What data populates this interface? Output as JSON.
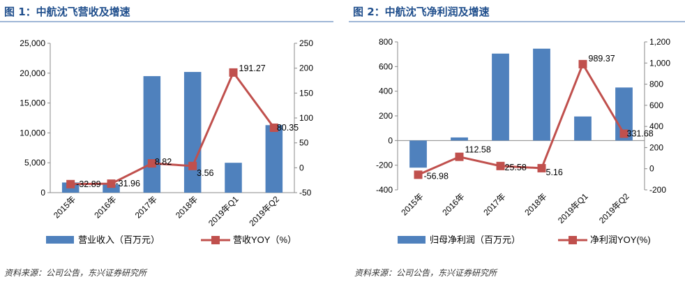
{
  "charts": [
    {
      "title": "图 1：中航沈飞营收及增速",
      "source": "资料来源：公司公告，东兴证券研究所"
    },
    {
      "title": "图 2：中航沈飞净利润及增速",
      "source": "资料来源：公司公告，东兴证券研究所"
    }
  ],
  "colors": {
    "bar": "#4f81bd",
    "line": "#c0504d",
    "title": "#1f4e8c"
  },
  "chart_data": [
    {
      "type": "bar",
      "title": "图 1：中航沈飞营收及增速",
      "categories": [
        "2015年",
        "2016年",
        "2017年",
        "2018年",
        "2019年Q1",
        "2019年Q2"
      ],
      "series": [
        {
          "name": "营业收入（百万元）",
          "type": "bar",
          "axis": "left",
          "values": [
            1700,
            1350,
            19500,
            20200,
            5000,
            11300
          ]
        },
        {
          "name": "营收YOY（%）",
          "type": "line",
          "axis": "right",
          "values": [
            -32.89,
            -31.96,
            8.82,
            3.56,
            191.27,
            80.35
          ],
          "labels": [
            "-32.89",
            "-31.96",
            "8.82",
            "3.56",
            "191.27",
            "80.35"
          ]
        }
      ],
      "ylim": [
        0,
        25000
      ],
      "yticks": [
        "0",
        "5,000",
        "10,000",
        "15,000",
        "20,000",
        "25,000"
      ],
      "y2lim": [
        -50,
        250
      ],
      "y2ticks": [
        "-50",
        "0",
        "50",
        "100",
        "150",
        "200",
        "250"
      ],
      "legend": "bottom"
    },
    {
      "type": "bar",
      "title": "图 2：中航沈飞净利润及增速",
      "categories": [
        "2015年",
        "2016年",
        "2017年",
        "2018年",
        "2019年Q1",
        "2019年Q2"
      ],
      "series": [
        {
          "name": "归母净利润（百万元）",
          "type": "bar",
          "axis": "left",
          "values": [
            -220,
            25,
            705,
            745,
            195,
            430
          ]
        },
        {
          "name": "净利润YOY(%)",
          "type": "line",
          "axis": "right",
          "values": [
            -56.98,
            112.58,
            25.58,
            5.16,
            989.37,
            331.68
          ],
          "labels": [
            "-56.98",
            "112.58",
            "25.58",
            "5.16",
            "989.37",
            "331.68"
          ]
        }
      ],
      "ylim": [
        -400,
        800
      ],
      "yticks": [
        "-400",
        "-200",
        "0",
        "200",
        "400",
        "600",
        "800"
      ],
      "y2lim": [
        -200,
        1200
      ],
      "y2ticks": [
        "-200",
        "0",
        "200",
        "400",
        "600",
        "800",
        "1,000",
        "1,200"
      ],
      "legend": "bottom"
    }
  ]
}
